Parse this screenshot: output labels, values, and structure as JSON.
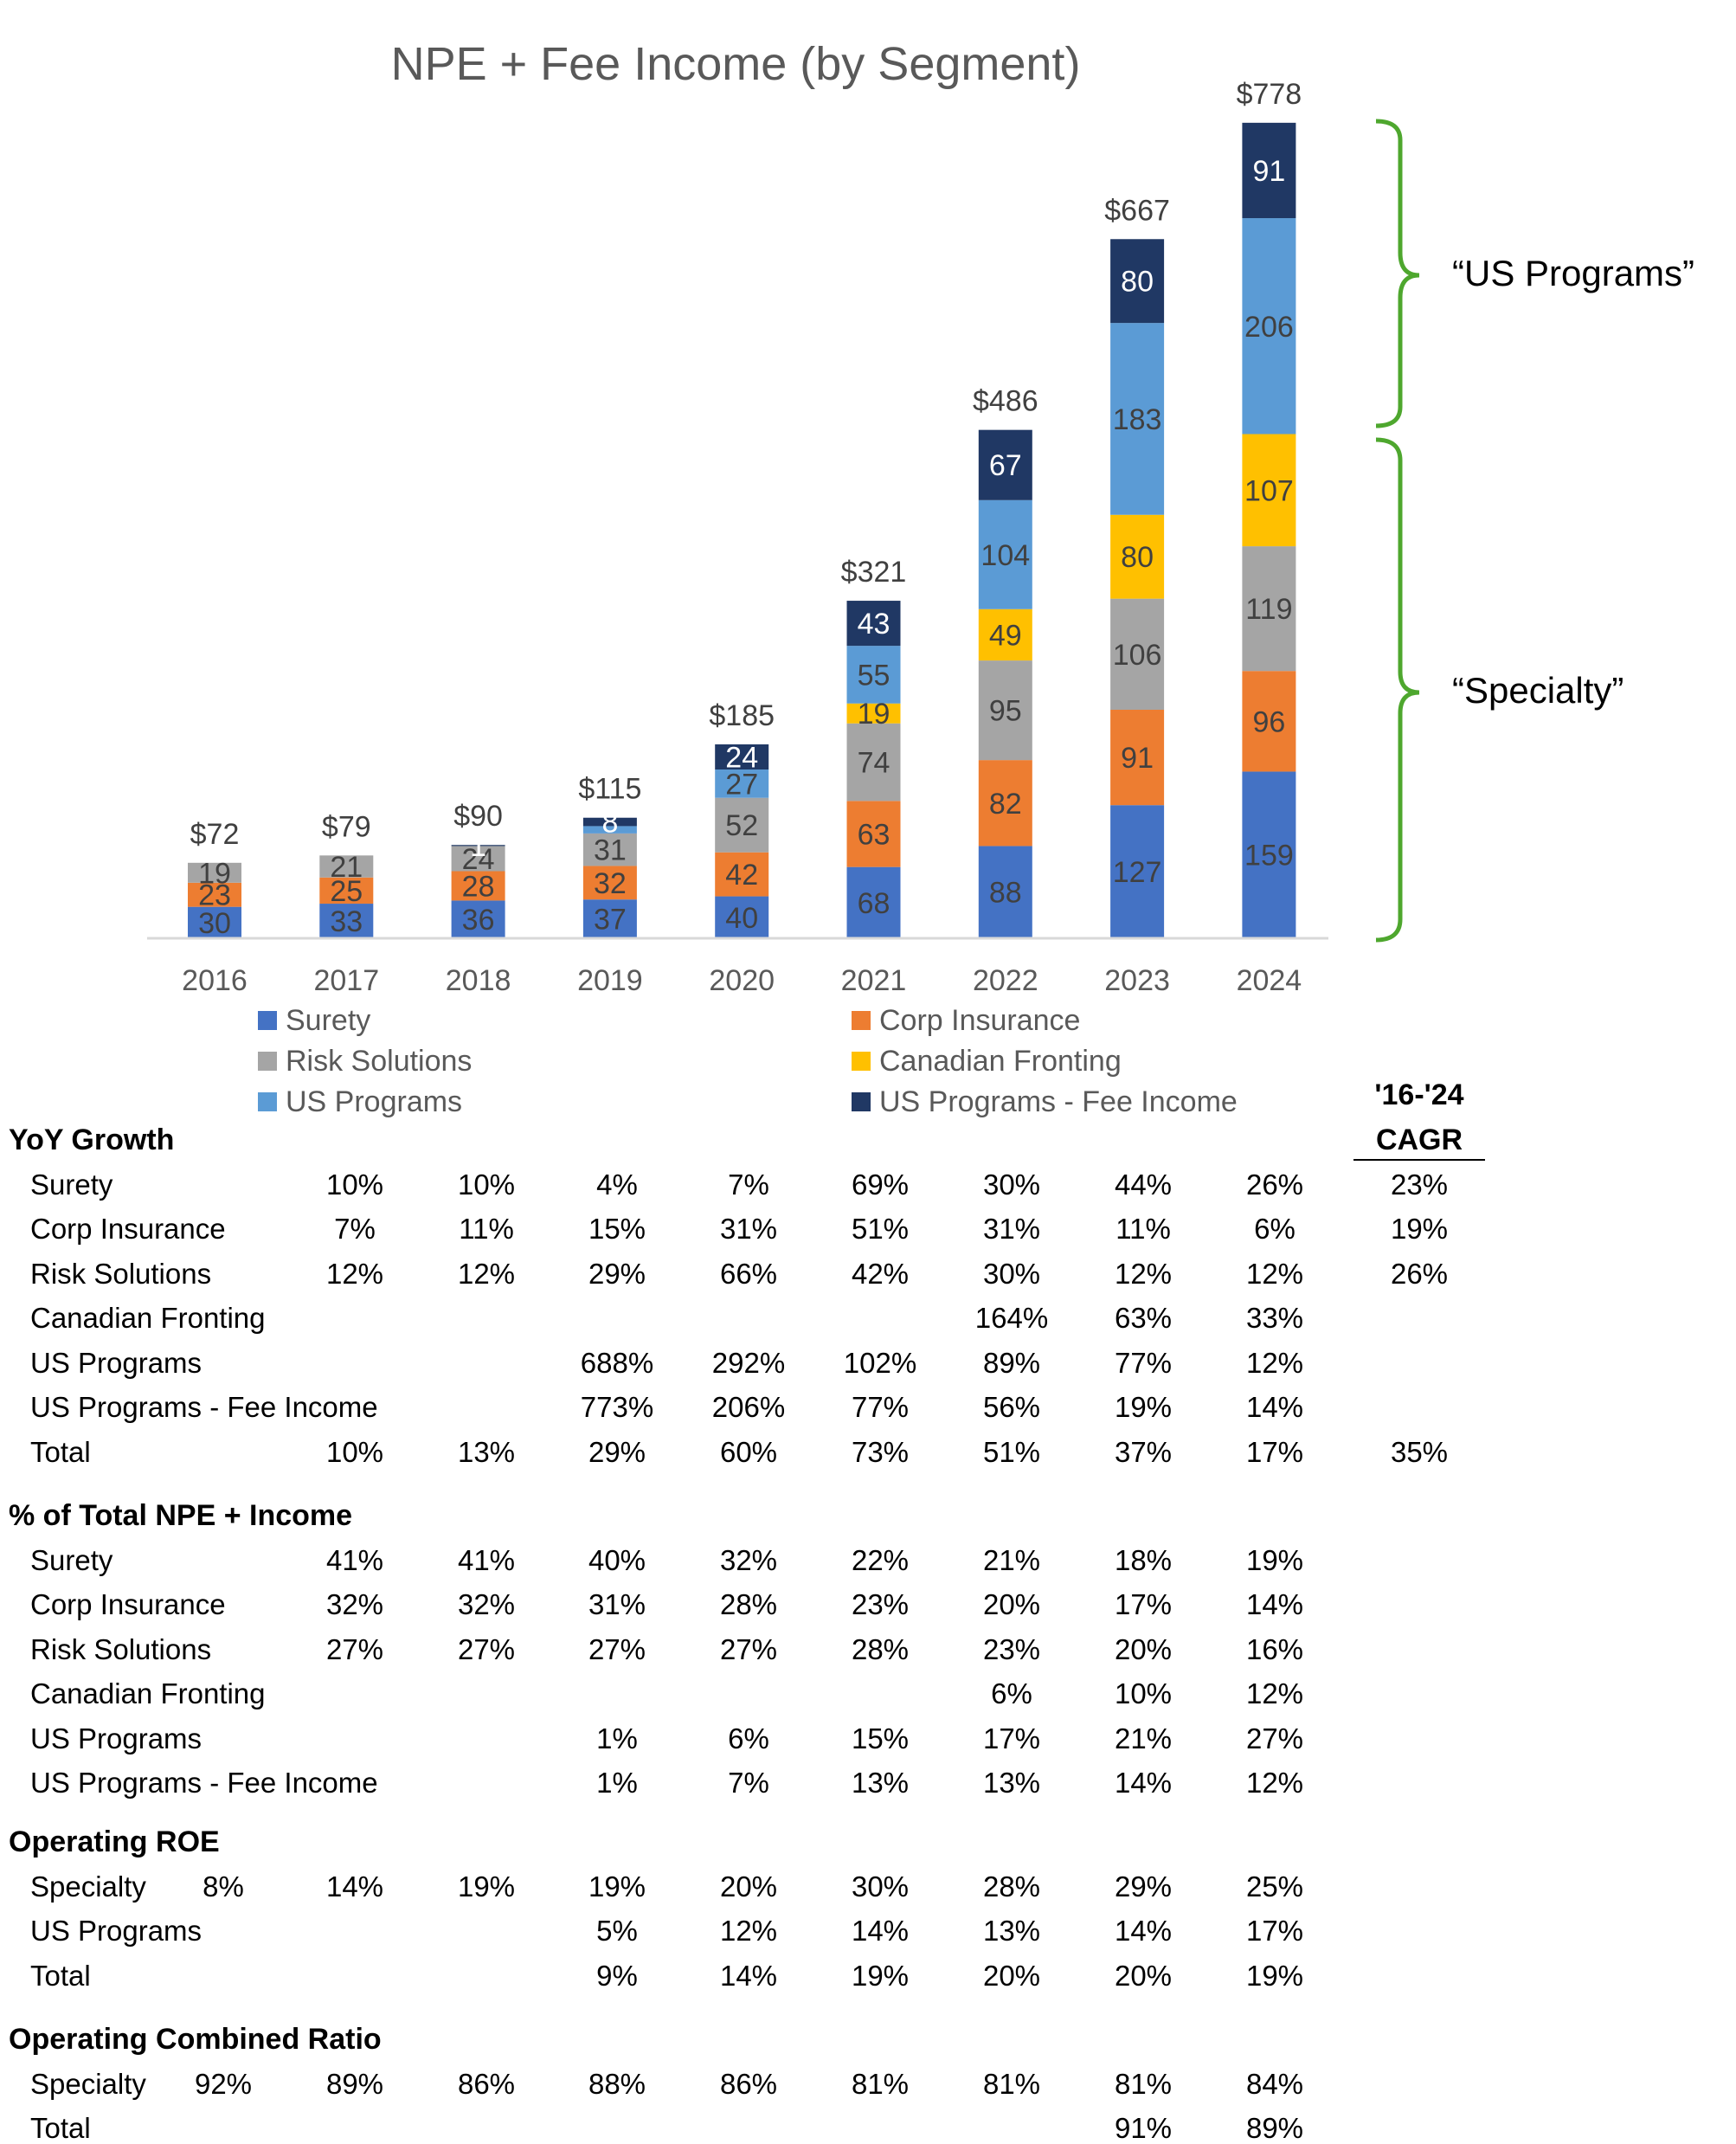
{
  "chart_data": {
    "type": "bar",
    "stacked": true,
    "title": "NPE + Fee Income (by Segment)",
    "categories": [
      "2016",
      "2017",
      "2018",
      "2019",
      "2020",
      "2021",
      "2022",
      "2023",
      "2024"
    ],
    "series": [
      {
        "name": "Surety",
        "color": "#4472C4",
        "values": [
          30,
          33,
          36,
          37,
          40,
          68,
          88,
          127,
          159
        ]
      },
      {
        "name": "Corp Insurance",
        "color": "#ED7D31",
        "values": [
          23,
          25,
          28,
          32,
          42,
          63,
          82,
          91,
          96
        ]
      },
      {
        "name": "Risk Solutions",
        "color": "#A5A5A5",
        "values": [
          19,
          21,
          24,
          31,
          52,
          74,
          95,
          106,
          119
        ]
      },
      {
        "name": "Canadian Fronting",
        "color": "#FFC000",
        "values": [
          null,
          null,
          null,
          null,
          null,
          19,
          49,
          80,
          107
        ]
      },
      {
        "name": "US Programs",
        "color": "#5B9BD5",
        "values": [
          null,
          null,
          null,
          7,
          27,
          55,
          104,
          183,
          206
        ]
      },
      {
        "name": "US Programs - Fee Income",
        "color": "#203864",
        "values": [
          null,
          null,
          1,
          8,
          24,
          43,
          67,
          80,
          91
        ]
      }
    ],
    "segment_labels": [
      {
        "Surety": "30",
        "Corp Insurance": "23",
        "Risk Solutions": "19"
      },
      {
        "Surety": "33",
        "Corp Insurance": "25",
        "Risk Solutions": "21"
      },
      {
        "Surety": "36",
        "Corp Insurance": "28",
        "Risk Solutions": "24",
        "US Programs - Fee Income": "1"
      },
      {
        "Surety": "37",
        "Corp Insurance": "32",
        "Risk Solutions": "31",
        "US Programs - Fee Income": "8"
      },
      {
        "Surety": "40",
        "Corp Insurance": "42",
        "Risk Solutions": "52",
        "US Programs": "27",
        "US Programs - Fee Income": "24"
      },
      {
        "Surety": "68",
        "Corp Insurance": "63",
        "Risk Solutions": "74",
        "Canadian Fronting": "19",
        "US Programs": "55",
        "US Programs - Fee Income": "43"
      },
      {
        "Surety": "88",
        "Corp Insurance": "82",
        "Risk Solutions": "95",
        "Canadian Fronting": "49",
        "US Programs": "104",
        "US Programs - Fee Income": "67"
      },
      {
        "Surety": "127",
        "Corp Insurance": "91",
        "Risk Solutions": "106",
        "Canadian Fronting": "80",
        "US Programs": "183",
        "US Programs - Fee Income": "80"
      },
      {
        "Surety": "159",
        "Corp Insurance": "96",
        "Risk Solutions": "119",
        "Canadian Fronting": "107",
        "US Programs": "206",
        "US Programs - Fee Income": "91"
      }
    ],
    "totals": [
      "$72",
      "$79",
      "$90",
      "$115",
      "$185",
      "$321",
      "$486",
      "$667",
      "$778"
    ],
    "ylim": [
      0,
      800
    ],
    "xlabel": "",
    "ylabel": "",
    "legend": "bottom",
    "annotations": [
      "“US Programs”",
      "“Specialty”"
    ]
  },
  "cagr_header": [
    "'16-'24",
    "CAGR"
  ],
  "tables": [
    {
      "title": "YoY Growth",
      "rows": [
        {
          "label": "Surety",
          "values": [
            "",
            "10%",
            "10%",
            "4%",
            "7%",
            "69%",
            "30%",
            "44%",
            "26%",
            "23%"
          ]
        },
        {
          "label": "Corp Insurance",
          "values": [
            "",
            "7%",
            "11%",
            "15%",
            "31%",
            "51%",
            "31%",
            "11%",
            "6%",
            "19%"
          ]
        },
        {
          "label": "Risk Solutions",
          "values": [
            "",
            "12%",
            "12%",
            "29%",
            "66%",
            "42%",
            "30%",
            "12%",
            "12%",
            "26%"
          ]
        },
        {
          "label": "Canadian Fronting",
          "values": [
            "",
            "",
            "",
            "",
            "",
            "",
            "164%",
            "63%",
            "33%",
            ""
          ]
        },
        {
          "label": "US Programs",
          "values": [
            "",
            "",
            "",
            "688%",
            "292%",
            "102%",
            "89%",
            "77%",
            "12%",
            ""
          ]
        },
        {
          "label": "US Programs - Fee Income",
          "values": [
            "",
            "",
            "",
            "773%",
            "206%",
            "77%",
            "56%",
            "19%",
            "14%",
            ""
          ]
        },
        {
          "label": "Total",
          "values": [
            "",
            "10%",
            "13%",
            "29%",
            "60%",
            "73%",
            "51%",
            "37%",
            "17%",
            "35%"
          ]
        }
      ]
    },
    {
      "title": "% of Total NPE + Income",
      "rows": [
        {
          "label": "Surety",
          "values": [
            "",
            "41%",
            "41%",
            "40%",
            "32%",
            "22%",
            "21%",
            "18%",
            "19%",
            ""
          ]
        },
        {
          "label": "Corp Insurance",
          "values": [
            "",
            "32%",
            "32%",
            "31%",
            "28%",
            "23%",
            "20%",
            "17%",
            "14%",
            ""
          ]
        },
        {
          "label": "Risk Solutions",
          "values": [
            "",
            "27%",
            "27%",
            "27%",
            "27%",
            "28%",
            "23%",
            "20%",
            "16%",
            ""
          ]
        },
        {
          "label": "Canadian Fronting",
          "values": [
            "",
            "",
            "",
            "",
            "",
            "",
            "6%",
            "10%",
            "12%",
            ""
          ]
        },
        {
          "label": "US Programs",
          "values": [
            "",
            "",
            "",
            "1%",
            "6%",
            "15%",
            "17%",
            "21%",
            "27%",
            ""
          ]
        },
        {
          "label": "US Programs - Fee Income",
          "values": [
            "",
            "",
            "",
            "1%",
            "7%",
            "13%",
            "13%",
            "14%",
            "12%",
            ""
          ]
        }
      ]
    },
    {
      "title": "Operating ROE",
      "rows": [
        {
          "label": "Specialty",
          "values": [
            "8%",
            "14%",
            "19%",
            "19%",
            "20%",
            "30%",
            "28%",
            "29%",
            "25%",
            ""
          ]
        },
        {
          "label": "US Programs",
          "values": [
            "",
            "",
            "",
            "5%",
            "12%",
            "14%",
            "13%",
            "14%",
            "17%",
            ""
          ]
        },
        {
          "label": "Total",
          "values": [
            "",
            "",
            "",
            "9%",
            "14%",
            "19%",
            "20%",
            "20%",
            "19%",
            ""
          ]
        }
      ]
    },
    {
      "title": "Operating Combined Ratio",
      "rows": [
        {
          "label": "Specialty",
          "values": [
            "92%",
            "89%",
            "86%",
            "88%",
            "86%",
            "81%",
            "81%",
            "81%",
            "84%",
            ""
          ]
        },
        {
          "label": "Total",
          "values": [
            "",
            "",
            "",
            "",
            "",
            "",
            "",
            "91%",
            "89%",
            ""
          ]
        }
      ]
    }
  ]
}
